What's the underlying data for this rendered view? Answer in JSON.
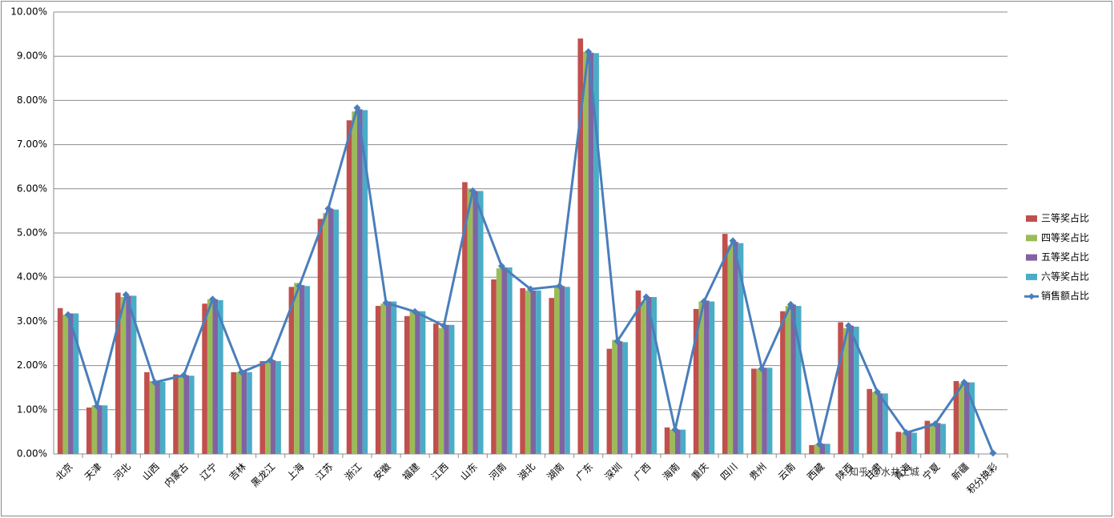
{
  "chart_data": {
    "type": "bar",
    "categories": [
      "北京",
      "天津",
      "河北",
      "山西",
      "内蒙古",
      "辽宁",
      "吉林",
      "黑龙江",
      "上海",
      "江苏",
      "浙江",
      "安徽",
      "福建",
      "江西",
      "山东",
      "河南",
      "湖北",
      "湖南",
      "广东",
      "深圳",
      "广西",
      "海南",
      "重庆",
      "四川",
      "贵州",
      "云南",
      "西藏",
      "陕西",
      "甘肃",
      "青海",
      "宁夏",
      "新疆",
      "积分换彩"
    ],
    "series": [
      {
        "name": "三等奖占比",
        "color": "#c0504d",
        "values": [
          3.3,
          1.05,
          3.65,
          1.85,
          1.8,
          3.4,
          1.85,
          2.1,
          3.78,
          5.32,
          7.55,
          3.35,
          3.12,
          2.95,
          6.15,
          3.95,
          3.75,
          3.53,
          9.4,
          2.38,
          3.7,
          0.6,
          3.28,
          4.98,
          1.93,
          3.23,
          0.2,
          2.98,
          1.47,
          0.5,
          0.75,
          1.65,
          null
        ]
      },
      {
        "name": "四等奖占比",
        "color": "#9bbb59",
        "values": [
          3.15,
          1.1,
          3.55,
          1.65,
          1.75,
          3.5,
          1.85,
          2.1,
          3.87,
          5.45,
          7.75,
          3.4,
          3.25,
          2.85,
          6.0,
          4.2,
          3.7,
          3.8,
          9.1,
          2.58,
          3.45,
          0.55,
          3.45,
          4.72,
          1.93,
          3.35,
          0.22,
          2.85,
          1.4,
          0.48,
          0.7,
          1.6,
          null
        ]
      },
      {
        "name": "五等奖占比",
        "color": "#8064a2",
        "values": [
          3.18,
          1.1,
          3.58,
          1.65,
          1.78,
          3.5,
          1.87,
          2.12,
          3.82,
          5.55,
          7.8,
          3.45,
          3.23,
          2.92,
          5.95,
          4.22,
          3.7,
          3.8,
          9.08,
          2.55,
          3.55,
          0.55,
          3.47,
          4.8,
          1.95,
          3.38,
          0.23,
          2.9,
          1.37,
          0.5,
          0.7,
          1.62,
          null
        ]
      },
      {
        "name": "六等奖占比",
        "color": "#4bacc6",
        "values": [
          3.18,
          1.1,
          3.58,
          1.63,
          1.77,
          3.48,
          1.85,
          2.1,
          3.8,
          5.53,
          7.78,
          3.45,
          3.23,
          2.92,
          5.95,
          4.22,
          3.7,
          3.78,
          9.07,
          2.53,
          3.55,
          0.55,
          3.45,
          4.77,
          1.95,
          3.35,
          0.23,
          2.88,
          1.37,
          0.48,
          0.68,
          1.62,
          null
        ]
      },
      {
        "name": "销售额占比",
        "color": "#4a7ebb",
        "type": "line",
        "values": [
          3.15,
          1.08,
          3.6,
          1.62,
          1.78,
          3.5,
          1.85,
          2.12,
          3.8,
          5.55,
          7.83,
          3.42,
          3.22,
          2.9,
          5.95,
          4.25,
          3.73,
          3.8,
          9.1,
          2.55,
          3.55,
          0.55,
          3.45,
          4.82,
          1.93,
          3.38,
          0.22,
          2.9,
          1.4,
          0.48,
          0.68,
          1.62,
          0.02
        ]
      }
    ],
    "ylim": [
      0,
      10
    ],
    "yticks": [
      {
        "value": 0,
        "label": "0.00%"
      },
      {
        "value": 1,
        "label": "1.00%"
      },
      {
        "value": 2,
        "label": "2.00%"
      },
      {
        "value": 3,
        "label": "3.00%"
      },
      {
        "value": 4,
        "label": "4.00%"
      },
      {
        "value": 5,
        "label": "5.00%"
      },
      {
        "value": 6,
        "label": "6.00%"
      },
      {
        "value": 7,
        "label": "7.00%"
      },
      {
        "value": 8,
        "label": "8.00%"
      },
      {
        "value": 9,
        "label": "9.00%"
      },
      {
        "value": 10,
        "label": "10.00%"
      }
    ],
    "grid": true,
    "legend": "right",
    "watermark": "知乎 @水井土城"
  }
}
